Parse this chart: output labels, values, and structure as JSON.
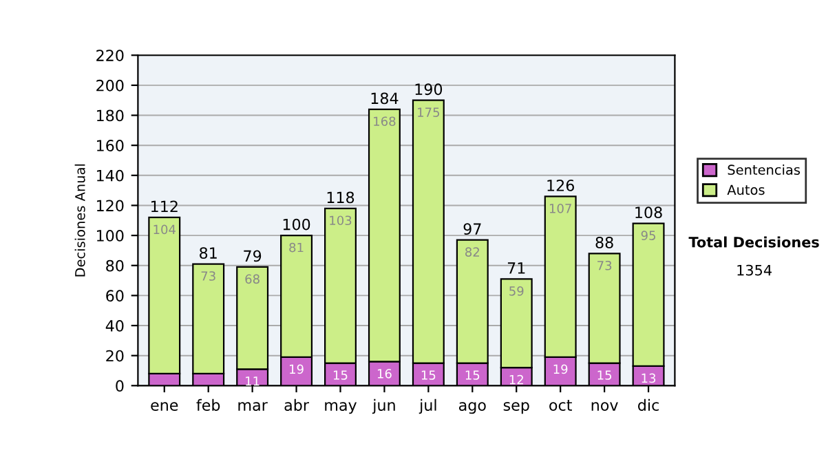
{
  "chart_data": {
    "type": "bar",
    "stacked": true,
    "ylabel": "Decisiones Anual",
    "categories": [
      "ene",
      "feb",
      "mar",
      "abr",
      "may",
      "jun",
      "jul",
      "ago",
      "sep",
      "oct",
      "nov",
      "dic"
    ],
    "series": [
      {
        "name": "Sentencias",
        "color": "#cc66cc",
        "values": [
          8,
          8,
          11,
          19,
          15,
          16,
          15,
          15,
          12,
          19,
          15,
          13
        ],
        "value_labels": [
          null,
          null,
          "11",
          "19",
          "15",
          "16",
          "15",
          "15",
          "12",
          "19",
          "15",
          "13"
        ]
      },
      {
        "name": "Autos",
        "color": "#ccee88",
        "values": [
          104,
          73,
          68,
          81,
          103,
          168,
          175,
          82,
          59,
          107,
          73,
          95
        ],
        "value_labels": [
          "104",
          "73",
          "68",
          "81",
          "103",
          "168",
          "175",
          "82",
          "59",
          "107",
          "73",
          "95"
        ]
      }
    ],
    "totals": [
      "112",
      "81",
      "79",
      "100",
      "118",
      "184",
      "190",
      "97",
      "71",
      "126",
      "88",
      "108"
    ],
    "ylim": [
      0,
      220
    ],
    "yticks": [
      0,
      20,
      40,
      60,
      80,
      100,
      120,
      140,
      160,
      180,
      200,
      220
    ],
    "grid": "y",
    "legend": "right",
    "annotations": [
      "Total Decisiones",
      "1354"
    ]
  }
}
